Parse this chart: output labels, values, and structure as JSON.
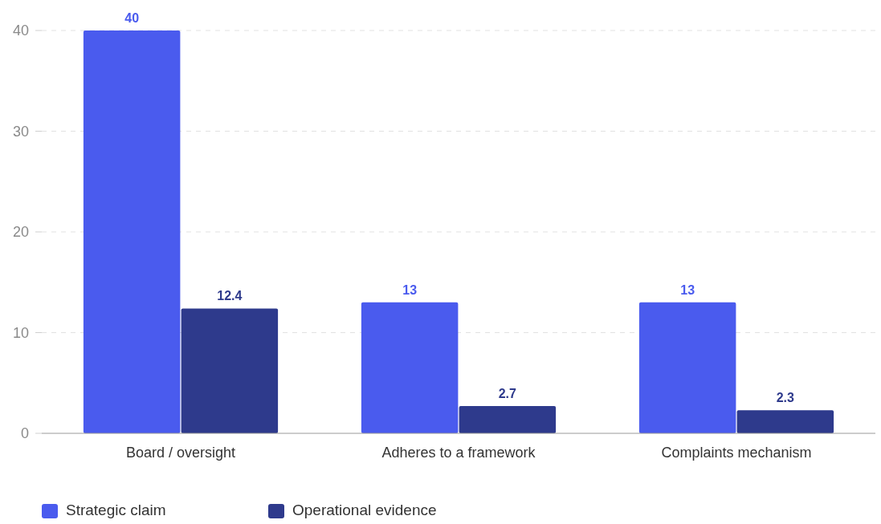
{
  "chart_data": {
    "type": "bar",
    "categories": [
      "Board / oversight",
      "Adheres to a framework",
      "Complaints mechanism"
    ],
    "series": [
      {
        "name": "Strategic claim",
        "color": "#4a5bee",
        "values": [
          40,
          13,
          13
        ]
      },
      {
        "name": "Operational evidence",
        "color": "#2e3a8c",
        "values": [
          12.4,
          2.7,
          2.3
        ]
      }
    ],
    "ylim": [
      0,
      40
    ],
    "yticks": [
      0,
      10,
      20,
      30,
      40
    ],
    "grid": "y",
    "legend": "bottom left",
    "data_labels": true
  }
}
